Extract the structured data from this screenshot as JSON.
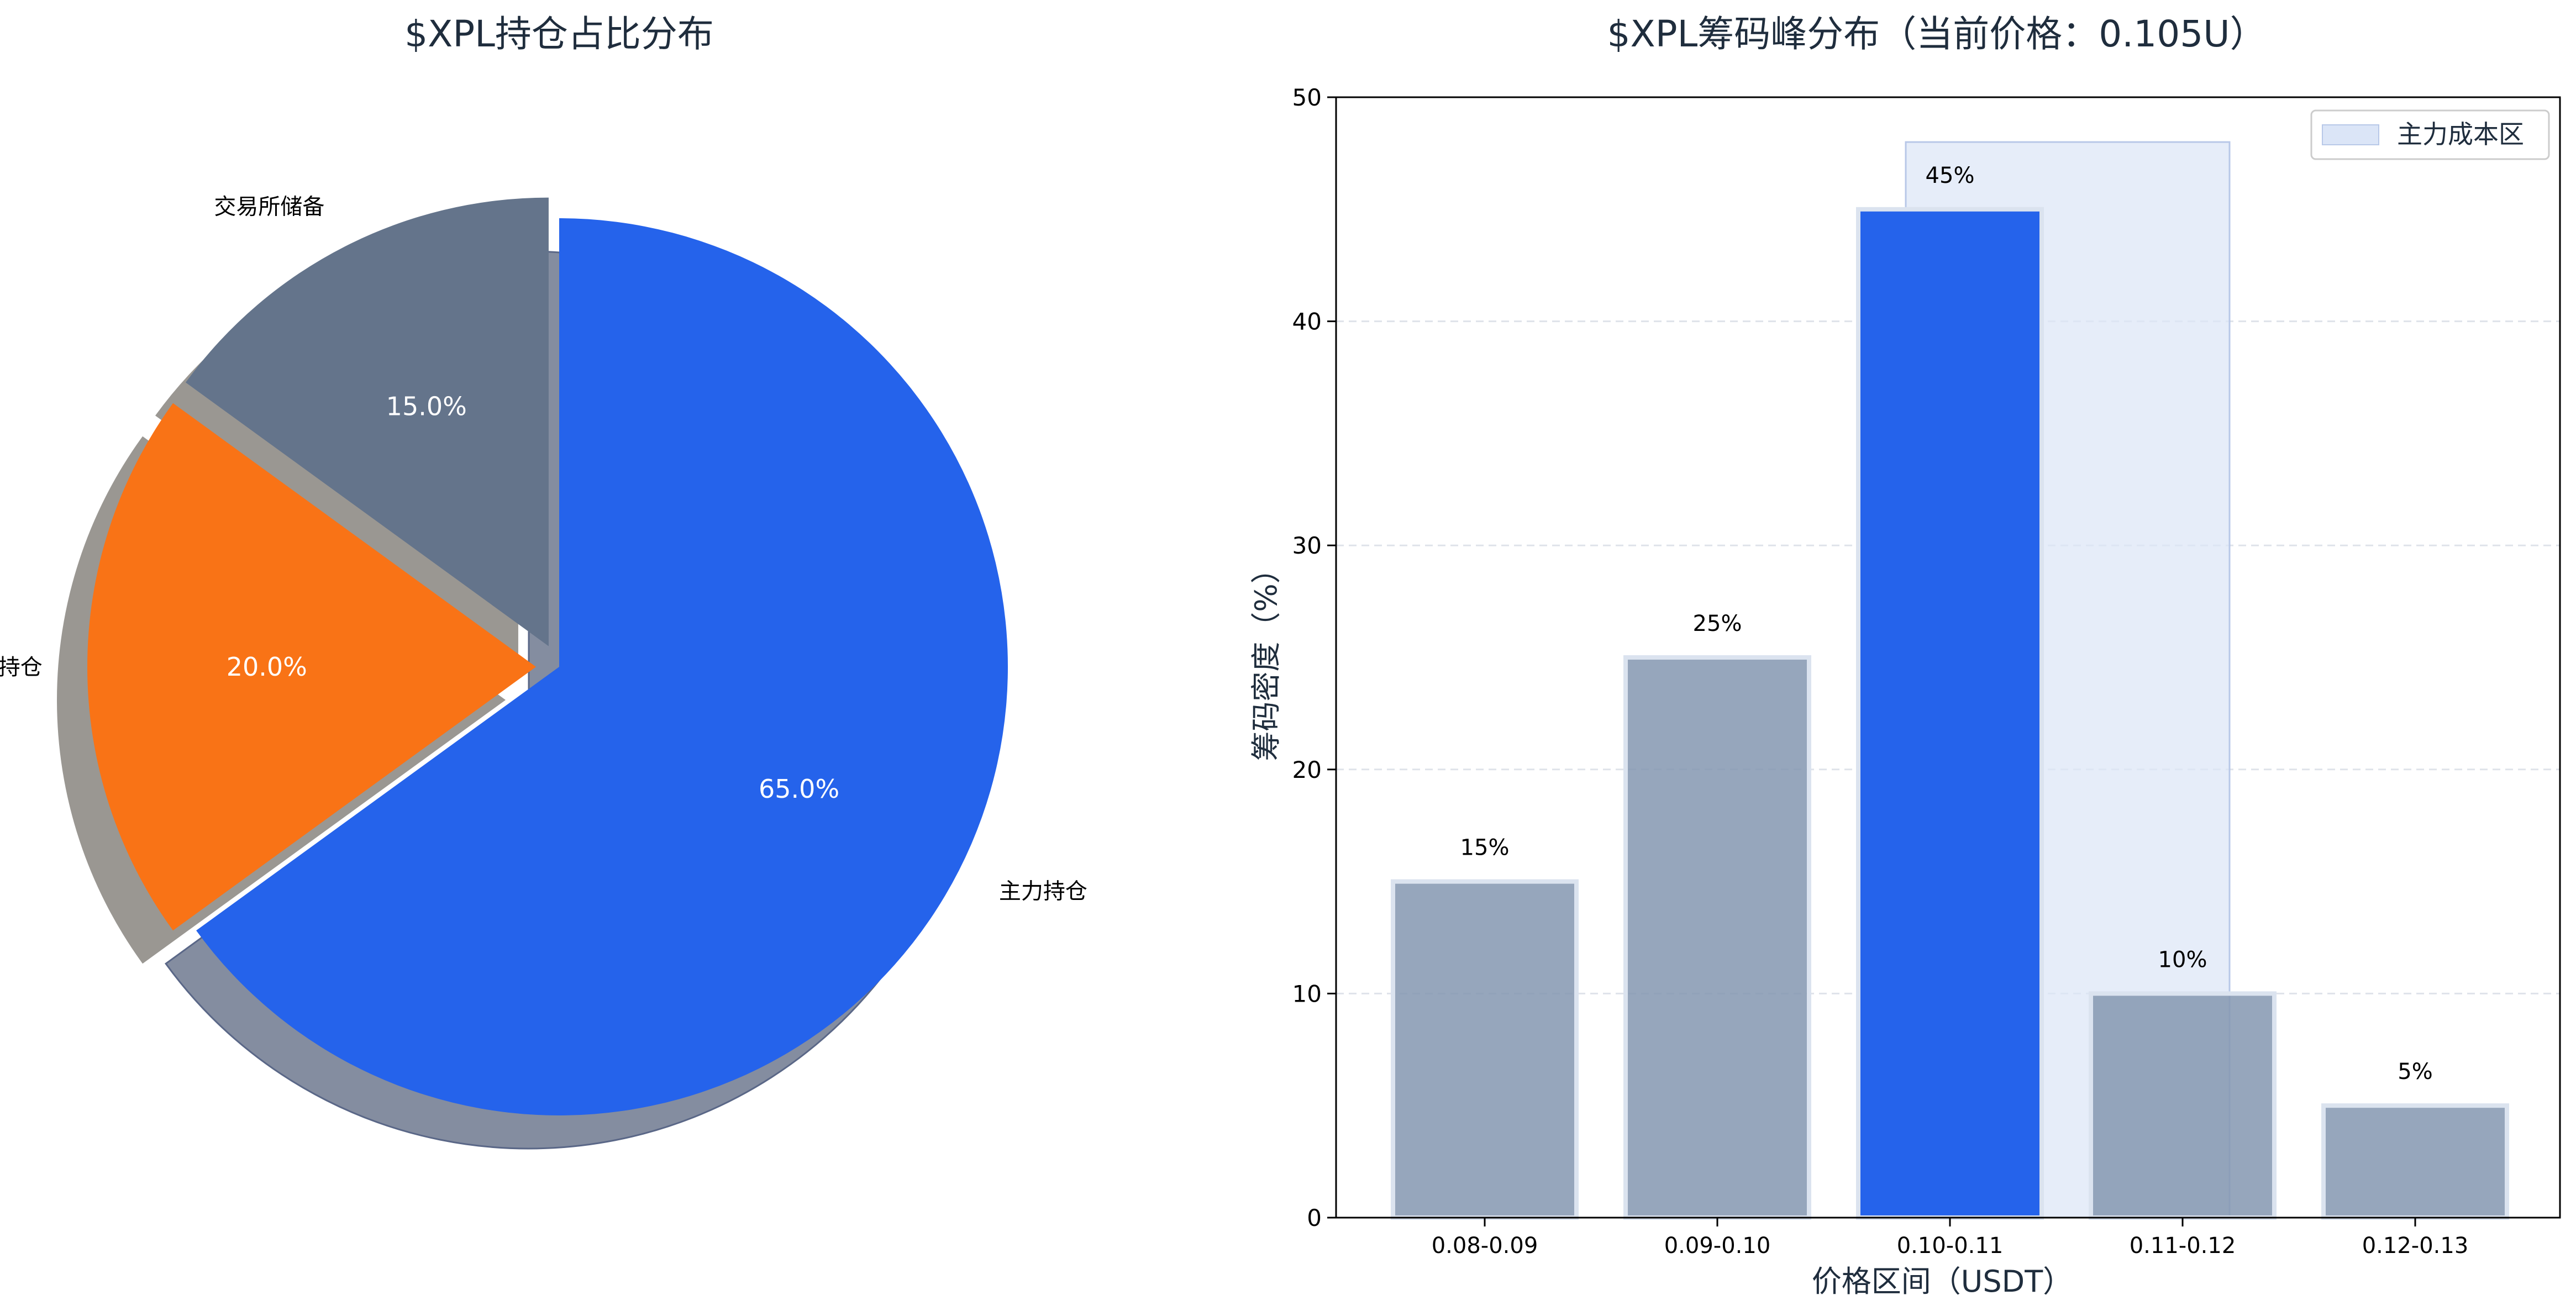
{
  "pie_chart": {
    "title": "$XPL持仓占比分布",
    "slices": [
      {
        "label": "主力持仓",
        "value": 65.0,
        "pct_label": "65.0%",
        "color": "#2563eb",
        "exploded": false
      },
      {
        "label": "散户持仓",
        "value": 20.0,
        "pct_label": "20.0%",
        "color": "#f97316",
        "exploded": true
      },
      {
        "label": "交易所储备",
        "value": 15.0,
        "pct_label": "15.0%",
        "color": "#64748b",
        "exploded": true
      }
    ],
    "start_angle_deg": 90,
    "direction": "clockwise",
    "shadow": true
  },
  "bar_chart": {
    "title": "$XPL筹码峰分布（当前价格：0.105U）",
    "xlabel": "价格区间（USDT）",
    "ylabel": "筹码密度（%）",
    "ylim": [
      0,
      50
    ],
    "yticks": [
      "0",
      "10",
      "20",
      "30",
      "40",
      "50"
    ],
    "highlight_color": "#2563eb",
    "bar_color": "#8497b0",
    "cost_zone": {
      "label": "主力成本区",
      "from_category": "0.10-0.11",
      "to_category": "0.11-0.12",
      "top": 48,
      "color": "#dbe5f7"
    },
    "legend_position": "upper-right"
  },
  "chart_data": [
    {
      "type": "pie",
      "title": "$XPL持仓占比分布",
      "categories": [
        "主力持仓",
        "散户持仓",
        "交易所储备"
      ],
      "values": [
        65.0,
        20.0,
        15.0
      ]
    },
    {
      "type": "bar",
      "title": "$XPL筹码峰分布（当前价格：0.105U）",
      "categories": [
        "0.08-0.09",
        "0.09-0.10",
        "0.10-0.11",
        "0.11-0.12",
        "0.12-0.13"
      ],
      "values": [
        15,
        25,
        45,
        10,
        5
      ],
      "value_labels": [
        "15%",
        "25%",
        "45%",
        "10%",
        "5%"
      ],
      "highlight_index": 2,
      "xlabel": "价格区间（USDT）",
      "ylabel": "筹码密度（%）",
      "ylim": [
        0,
        50
      ],
      "grid": true,
      "legend": [
        "主力成本区"
      ]
    }
  ]
}
